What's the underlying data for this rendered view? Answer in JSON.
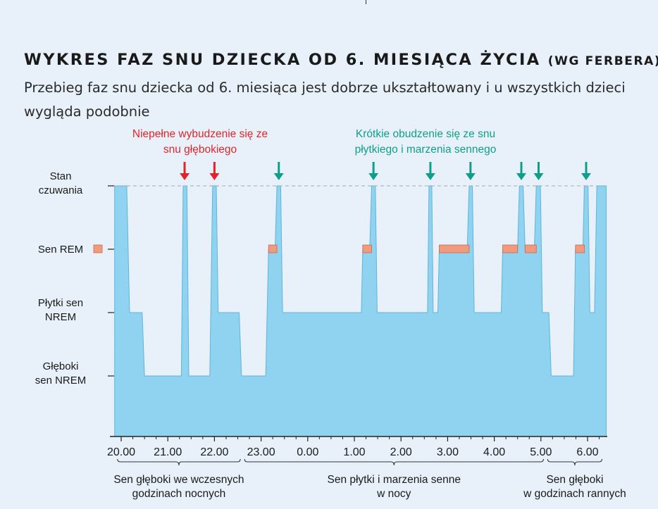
{
  "title": {
    "main": "WYKRES FAZ SNU DZIECKA OD 6. MIESIĄCA ŻYCIA",
    "source": "(WG FERBERA)"
  },
  "subtitle": "Przebieg faz snu dziecka od 6. miesiąca jest dobrze ukształtowany i u wszystkich dzieci wygląda podobnie",
  "colors": {
    "background": "#e8f1f9",
    "sleep_area": "#8fd3f1",
    "sleep_area_edge": "#5fb4dd",
    "rem": "#f29a7e",
    "partial_arousal": "#e2232a",
    "brief_awakening": "#0f9e8c"
  },
  "chart_data": {
    "type": "area",
    "title": "WYKRES FAZ SNU DZIECKA OD 6. MIESIĄCA ŻYCIA (WG FERBERA)",
    "x_unit": "hours after 20.00",
    "xlim": [
      -0.2,
      10.3
    ],
    "x_ticks": [
      {
        "x": 0,
        "label": "20.00"
      },
      {
        "x": 1,
        "label": "21.00"
      },
      {
        "x": 2,
        "label": "22.00"
      },
      {
        "x": 3,
        "label": "23.00"
      },
      {
        "x": 4,
        "label": "0.00"
      },
      {
        "x": 5,
        "label": "1.00"
      },
      {
        "x": 6,
        "label": "2.00"
      },
      {
        "x": 7,
        "label": "3.00"
      },
      {
        "x": 8,
        "label": "4.00"
      },
      {
        "x": 9,
        "label": "5.00"
      },
      {
        "x": 10,
        "label": "6.00"
      }
    ],
    "levels": [
      {
        "value": 3,
        "label": [
          "Stan",
          "czuwania"
        ]
      },
      {
        "value": 2,
        "label": [
          "Sen REM"
        ]
      },
      {
        "value": 1,
        "label": [
          "Płytki sen",
          "NREM"
        ]
      },
      {
        "value": 0,
        "label": [
          "Głęboki",
          "sen NREM"
        ]
      }
    ],
    "hypnogram": [
      [
        -0.14,
        3
      ],
      [
        0.12,
        3
      ],
      [
        0.18,
        1
      ],
      [
        0.45,
        1
      ],
      [
        0.5,
        0
      ],
      [
        1.29,
        0
      ],
      [
        1.33,
        3
      ],
      [
        1.41,
        3
      ],
      [
        1.45,
        0
      ],
      [
        1.9,
        0
      ],
      [
        1.96,
        3
      ],
      [
        2.04,
        3
      ],
      [
        2.08,
        1
      ],
      [
        2.53,
        1
      ],
      [
        2.58,
        0
      ],
      [
        3.1,
        0
      ],
      [
        3.16,
        2
      ],
      [
        3.3,
        2
      ],
      [
        3.34,
        3
      ],
      [
        3.42,
        3
      ],
      [
        3.46,
        1
      ],
      [
        5.15,
        1
      ],
      [
        5.18,
        2
      ],
      [
        5.33,
        2
      ],
      [
        5.37,
        3
      ],
      [
        5.45,
        3
      ],
      [
        5.49,
        1
      ],
      [
        6.57,
        1
      ],
      [
        6.6,
        3
      ],
      [
        6.66,
        3
      ],
      [
        6.69,
        1
      ],
      [
        6.79,
        1
      ],
      [
        6.82,
        2
      ],
      [
        7.42,
        2
      ],
      [
        7.46,
        3
      ],
      [
        7.53,
        3
      ],
      [
        7.57,
        1
      ],
      [
        8.15,
        1
      ],
      [
        8.18,
        2
      ],
      [
        8.5,
        2
      ],
      [
        8.54,
        3
      ],
      [
        8.62,
        3
      ],
      [
        8.66,
        2
      ],
      [
        8.86,
        2
      ],
      [
        8.9,
        3
      ],
      [
        8.99,
        3
      ],
      [
        9.03,
        1
      ],
      [
        9.17,
        1
      ],
      [
        9.22,
        0
      ],
      [
        9.7,
        0
      ],
      [
        9.74,
        2
      ],
      [
        9.9,
        2
      ],
      [
        9.93,
        3
      ],
      [
        10.01,
        3
      ],
      [
        10.05,
        1
      ],
      [
        10.15,
        1
      ],
      [
        10.2,
        3
      ],
      [
        10.4,
        3
      ]
    ],
    "rem_bars": [
      [
        3.16,
        3.34
      ],
      [
        5.18,
        5.37
      ],
      [
        6.82,
        7.46
      ],
      [
        8.18,
        8.5
      ],
      [
        8.66,
        8.9
      ],
      [
        9.74,
        9.93
      ]
    ],
    "legend_rem_swatch": "Sen REM",
    "partial_arousals": {
      "label": [
        "Niepełne wybudzenie się ze",
        "snu głębokiego"
      ],
      "x": [
        1.36,
        2.0
      ]
    },
    "brief_awakenings": {
      "label": [
        "Krótkie obudzenie się ze snu",
        "płytkiego i marzenia sennego"
      ],
      "x": [
        3.38,
        5.41,
        6.63,
        7.49,
        8.58,
        8.95,
        9.97
      ]
    },
    "periods": [
      {
        "from": -0.2,
        "to": 2.6,
        "label": [
          "Sen głęboki we wczesnych",
          "godzinach nocnych"
        ]
      },
      {
        "from": 2.6,
        "to": 9.1,
        "label": [
          "Sen płytki i marzenia senne",
          "w nocy"
        ]
      },
      {
        "from": 9.1,
        "to": 10.4,
        "label": [
          "Sen głęboki",
          "w godzinach rannych"
        ]
      }
    ]
  }
}
